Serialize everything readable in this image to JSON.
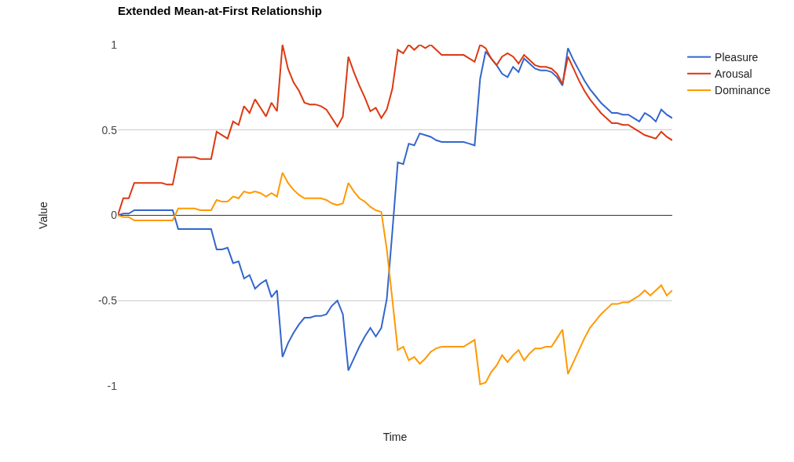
{
  "chart_data": {
    "type": "line",
    "title": "Extended Mean-at-First Relationship",
    "xlabel": "Time",
    "ylabel": "Value",
    "categories": [
      null,
      null,
      null,
      null,
      null,
      null,
      null,
      null,
      null,
      null,
      null,
      null,
      null,
      null,
      null,
      null,
      null,
      null,
      null,
      null,
      null,
      null,
      null,
      null,
      null,
      null,
      null,
      null,
      null,
      null,
      null,
      null,
      null,
      null,
      null,
      null,
      null,
      null,
      null,
      null,
      null,
      null,
      null,
      null,
      null,
      null,
      null,
      null,
      null,
      null,
      null,
      null,
      null,
      null,
      null,
      null,
      null,
      null,
      null,
      null,
      null,
      null,
      null,
      null,
      null,
      null,
      null,
      null,
      null,
      null,
      null,
      null,
      null,
      null,
      null,
      null,
      null,
      null,
      null,
      null,
      null,
      null,
      null,
      null,
      null,
      null,
      null,
      null,
      null,
      null,
      null,
      null,
      null,
      null,
      null,
      null,
      null,
      null,
      null,
      null,
      null,
      null
    ],
    "series": [
      {
        "name": "Pleasure",
        "color": "#3366cc",
        "values": [
          0,
          0.01,
          0.01,
          0.03,
          0.03,
          0.03,
          0.03,
          0.03,
          0.03,
          0.03,
          0.03,
          -0.08,
          -0.08,
          -0.08,
          -0.08,
          -0.08,
          -0.08,
          -0.08,
          -0.2,
          -0.2,
          -0.19,
          -0.28,
          -0.27,
          -0.37,
          -0.35,
          -0.43,
          -0.4,
          -0.38,
          -0.48,
          -0.44,
          -0.83,
          -0.75,
          -0.69,
          -0.64,
          -0.6,
          -0.6,
          -0.59,
          -0.59,
          -0.58,
          -0.53,
          -0.5,
          -0.58,
          -0.91,
          -0.84,
          -0.77,
          -0.71,
          -0.66,
          -0.71,
          -0.66,
          -0.49,
          -0.1,
          0.31,
          0.3,
          0.42,
          0.41,
          0.48,
          0.47,
          0.46,
          0.44,
          0.43,
          0.43,
          0.43,
          0.43,
          0.43,
          0.42,
          0.41,
          0.8,
          0.96,
          0.92,
          0.88,
          0.83,
          0.81,
          0.87,
          0.84,
          0.92,
          0.89,
          0.86,
          0.85,
          0.85,
          0.84,
          0.81,
          0.76,
          0.98,
          0.91,
          0.85,
          0.79,
          0.74,
          0.7,
          0.66,
          0.63,
          0.6,
          0.6,
          0.59,
          0.59,
          0.57,
          0.55,
          0.6,
          0.58,
          0.55,
          0.62,
          0.59,
          0.57
        ]
      },
      {
        "name": "Arousal",
        "color": "#dc3912",
        "values": [
          0,
          0.1,
          0.1,
          0.19,
          0.19,
          0.19,
          0.19,
          0.19,
          0.19,
          0.18,
          0.18,
          0.34,
          0.34,
          0.34,
          0.34,
          0.33,
          0.33,
          0.33,
          0.49,
          0.47,
          0.45,
          0.55,
          0.53,
          0.64,
          0.6,
          0.68,
          0.63,
          0.58,
          0.66,
          0.61,
          1.0,
          0.86,
          0.78,
          0.73,
          0.66,
          0.65,
          0.65,
          0.64,
          0.62,
          0.57,
          0.52,
          0.58,
          0.93,
          0.84,
          0.76,
          0.69,
          0.61,
          0.63,
          0.57,
          0.62,
          0.74,
          0.97,
          0.95,
          1.0,
          0.97,
          1.0,
          0.98,
          1.0,
          0.97,
          0.94,
          0.94,
          0.94,
          0.94,
          0.94,
          0.92,
          0.9,
          1.0,
          0.98,
          0.92,
          0.88,
          0.93,
          0.95,
          0.93,
          0.89,
          0.94,
          0.91,
          0.88,
          0.87,
          0.87,
          0.86,
          0.83,
          0.77,
          0.93,
          0.86,
          0.79,
          0.73,
          0.68,
          0.64,
          0.6,
          0.57,
          0.54,
          0.54,
          0.53,
          0.53,
          0.51,
          0.49,
          0.47,
          0.46,
          0.45,
          0.49,
          0.46,
          0.44
        ]
      },
      {
        "name": "Dominance",
        "color": "#ff9900",
        "values": [
          0,
          -0.01,
          -0.01,
          -0.03,
          -0.03,
          -0.03,
          -0.03,
          -0.03,
          -0.03,
          -0.03,
          -0.03,
          0.04,
          0.04,
          0.04,
          0.04,
          0.03,
          0.03,
          0.03,
          0.09,
          0.08,
          0.08,
          0.11,
          0.1,
          0.14,
          0.13,
          0.14,
          0.13,
          0.11,
          0.13,
          0.11,
          0.25,
          0.19,
          0.15,
          0.12,
          0.1,
          0.1,
          0.1,
          0.1,
          0.09,
          0.07,
          0.06,
          0.07,
          0.19,
          0.14,
          0.1,
          0.08,
          0.05,
          0.03,
          0.02,
          -0.2,
          -0.49,
          -0.79,
          -0.77,
          -0.85,
          -0.83,
          -0.87,
          -0.84,
          -0.8,
          -0.78,
          -0.77,
          -0.77,
          -0.77,
          -0.77,
          -0.77,
          -0.75,
          -0.73,
          -0.99,
          -0.98,
          -0.92,
          -0.88,
          -0.82,
          -0.86,
          -0.82,
          -0.79,
          -0.85,
          -0.81,
          -0.78,
          -0.78,
          -0.77,
          -0.77,
          -0.72,
          -0.67,
          -0.93,
          -0.86,
          -0.79,
          -0.72,
          -0.66,
          -0.62,
          -0.58,
          -0.55,
          -0.52,
          -0.52,
          -0.51,
          -0.51,
          -0.49,
          -0.47,
          -0.44,
          -0.47,
          -0.44,
          -0.41,
          -0.47,
          -0.44
        ]
      }
    ],
    "ylim": [
      -1,
      1
    ],
    "yticks": [
      -1,
      -0.5,
      0,
      0.5,
      1
    ],
    "grid": "y",
    "legend": "right",
    "tick_labels": "y",
    "marker": "none",
    "line_style": "solid"
  }
}
